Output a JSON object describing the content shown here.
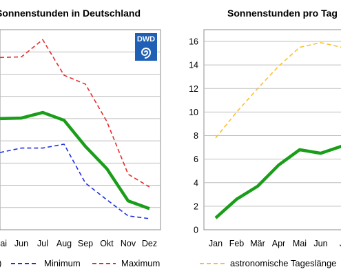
{
  "chart_data": [
    {
      "type": "line",
      "title": "Sonnenstunden in Deutschland",
      "categories": [
        "Mai",
        "Jun",
        "Jul",
        "Aug",
        "Sep",
        "Okt",
        "Nov",
        "Dez"
      ],
      "series": [
        {
          "name": "",
          "color": "#1a9e1a",
          "style": "solid",
          "values": [
            200,
            201,
            211,
            197,
            150,
            110,
            52,
            38
          ]
        },
        {
          "name": "Minimum",
          "color": "#1f2fe0",
          "style": "dashed",
          "values": [
            139,
            147,
            147,
            154,
            84,
            54,
            25,
            20
          ]
        },
        {
          "name": "Maximum",
          "color": "#ea2a2a",
          "style": "dashed",
          "values": [
            310,
            311,
            342,
            278,
            262,
            195,
            100,
            77
          ]
        }
      ],
      "grid": true,
      "logo": {
        "text": "DWD",
        "color": "#1f5fb5"
      }
    },
    {
      "type": "line",
      "title": "Sonnenstunden pro Tag",
      "categories": [
        "Jan",
        "Feb",
        "Mär",
        "Apr",
        "Mai",
        "Jun",
        "J"
      ],
      "series": [
        {
          "name": "",
          "color": "#1a9e1a",
          "style": "solid",
          "values": [
            1.0,
            2.6,
            3.7,
            5.5,
            6.8,
            6.5,
            7.1
          ]
        },
        {
          "name": "astronomische Tageslänge",
          "color": "#fcc02e",
          "style": "dashed",
          "values": [
            7.8,
            10.0,
            12.0,
            13.9,
            15.5,
            15.9,
            15.5
          ]
        }
      ],
      "yticks": [
        "0",
        "2",
        "4",
        "6",
        "8",
        "10",
        "12",
        "14",
        "16"
      ],
      "ylim": [
        0,
        17
      ],
      "grid": true
    }
  ],
  "legend": {
    "clipped_marker": ")",
    "items": [
      {
        "label": "Minimum",
        "color": "#1f2fe0"
      },
      {
        "label": "Maximum",
        "color": "#ea2a2a"
      },
      {
        "label": "astronomische Tageslänge",
        "color": "#fcc02e"
      }
    ]
  }
}
